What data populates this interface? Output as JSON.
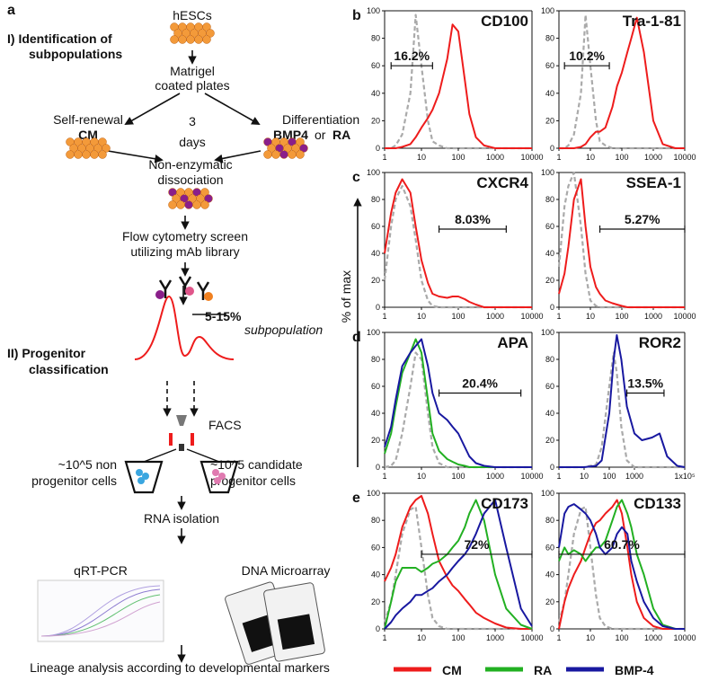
{
  "panel_labels": [
    "a",
    "b",
    "c",
    "d",
    "e"
  ],
  "y_label": "% of max",
  "legend": [
    {
      "name": "CM",
      "color": "#ee1c1c"
    },
    {
      "name": "RA",
      "color": "#22b022"
    },
    {
      "name": "BMP-4",
      "color": "#1818a0"
    }
  ],
  "diagram": {
    "texts": [
      "I) Identification of",
      "subpopulations",
      "hESCs",
      "Matrigel",
      "coated plates",
      "Self-renewal",
      "CM",
      "3",
      "days",
      "Differentiation",
      "BMP4",
      "or",
      "RA",
      "Non-enzymatic",
      "dissociation",
      "Flow cytometry screen",
      "utilizing mAb library",
      "5-15%",
      "subpopulation",
      "II) Progenitor",
      "classification",
      "FACS",
      "~10^5 non",
      "progenitor cells",
      "~10^5 candidate",
      "progenitor cells",
      "RNA isolation",
      "qRT-PCR",
      "DNA Microarray",
      "Lineage analysis according to developmental markers"
    ]
  },
  "chart_data": [
    {
      "type": "line",
      "title": "CD100",
      "log_x": true,
      "x": [
        1,
        1.5,
        2,
        3,
        5,
        7,
        10,
        15,
        20,
        30,
        50,
        70,
        100,
        150,
        200,
        300,
        500,
        1000,
        2000,
        5000,
        10000
      ],
      "xlim": [
        1,
        10000
      ],
      "xticks": [
        1,
        10,
        100,
        1000,
        10000
      ],
      "ylim": [
        0,
        100
      ],
      "yticks": [
        0,
        20,
        40,
        60,
        80,
        100
      ],
      "series": [
        {
          "color": "#aaaaaa",
          "dash": true,
          "values": [
            0,
            0,
            2,
            10,
            40,
            97,
            60,
            20,
            5,
            2,
            0,
            0,
            0,
            0,
            0,
            0,
            0,
            0,
            0,
            0,
            0
          ]
        },
        {
          "color": "#ee1c1c",
          "values": [
            0,
            0,
            0,
            1,
            3,
            8,
            15,
            22,
            28,
            40,
            65,
            90,
            85,
            50,
            25,
            8,
            2,
            0,
            0,
            0,
            0
          ]
        }
      ],
      "gate": {
        "label": "16.2%",
        "range": [
          1.5,
          20
        ],
        "y": 60
      }
    },
    {
      "type": "line",
      "title": "Tra-1-81",
      "log_x": true,
      "x": [
        1,
        1.5,
        2,
        3,
        5,
        7,
        10,
        15,
        20,
        30,
        50,
        70,
        100,
        150,
        200,
        300,
        500,
        1000,
        2000,
        5000,
        10000
      ],
      "xlim": [
        1,
        10000
      ],
      "xticks": [
        1,
        10,
        100,
        1000,
        10000
      ],
      "ylim": [
        0,
        100
      ],
      "yticks": [
        0,
        20,
        40,
        60,
        80,
        100
      ],
      "series": [
        {
          "color": "#aaaaaa",
          "dash": true,
          "values": [
            0,
            0,
            2,
            10,
            40,
            97,
            60,
            20,
            5,
            2,
            0,
            0,
            0,
            0,
            0,
            0,
            0,
            0,
            0,
            0,
            0
          ]
        },
        {
          "color": "#ee1c1c",
          "values": [
            0,
            0,
            0,
            0,
            1,
            3,
            8,
            12,
            12,
            15,
            30,
            45,
            55,
            70,
            80,
            95,
            70,
            20,
            3,
            0,
            0
          ]
        }
      ],
      "gate": {
        "label": "10.2%",
        "range": [
          1.5,
          40
        ],
        "y": 60
      }
    },
    {
      "type": "line",
      "title": "CXCR4",
      "log_x": true,
      "x": [
        1,
        1.5,
        2,
        3,
        5,
        7,
        10,
        15,
        20,
        30,
        50,
        70,
        100,
        150,
        200,
        300,
        500,
        1000,
        2000,
        5000,
        10000
      ],
      "xlim": [
        1,
        10000
      ],
      "xticks": [
        1,
        10,
        100,
        1000,
        10000
      ],
      "ylim": [
        0,
        100
      ],
      "yticks": [
        0,
        20,
        40,
        60,
        80,
        100
      ],
      "series": [
        {
          "color": "#aaaaaa",
          "dash": true,
          "values": [
            20,
            60,
            80,
            90,
            75,
            50,
            20,
            5,
            1,
            0,
            0,
            0,
            0,
            0,
            0,
            0,
            0,
            0,
            0,
            0,
            0
          ]
        },
        {
          "color": "#ee1c1c",
          "values": [
            40,
            70,
            85,
            95,
            85,
            60,
            35,
            18,
            10,
            8,
            7,
            8,
            8,
            6,
            4,
            2,
            0,
            0,
            0,
            0,
            0
          ]
        }
      ],
      "gate": {
        "label": "8.03%",
        "range": [
          30,
          2000
        ],
        "y": 58
      }
    },
    {
      "type": "line",
      "title": "SSEA-1",
      "log_x": true,
      "x": [
        1,
        1.5,
        2,
        3,
        5,
        7,
        10,
        15,
        20,
        30,
        50,
        70,
        100,
        150,
        200,
        300,
        500,
        1000,
        2000,
        5000,
        10000
      ],
      "xlim": [
        1,
        10000
      ],
      "xticks": [
        1,
        10,
        100,
        1000,
        10000
      ],
      "ylim": [
        0,
        100
      ],
      "yticks": [
        0,
        20,
        40,
        60,
        80,
        100
      ],
      "series": [
        {
          "color": "#aaaaaa",
          "dash": true,
          "values": [
            30,
            75,
            90,
            100,
            60,
            25,
            5,
            1,
            0,
            0,
            0,
            0,
            0,
            0,
            0,
            0,
            0,
            0,
            0,
            0,
            0
          ]
        },
        {
          "color": "#ee1c1c",
          "values": [
            10,
            25,
            45,
            80,
            95,
            60,
            30,
            15,
            10,
            5,
            3,
            2,
            1,
            0,
            0,
            0,
            0,
            0,
            0,
            0,
            0
          ]
        }
      ],
      "gate": {
        "label": "5.27%",
        "range": [
          20,
          10000
        ],
        "y": 58
      }
    },
    {
      "type": "line",
      "title": "APA",
      "log_x": true,
      "x": [
        1,
        1.5,
        2,
        3,
        5,
        7,
        10,
        15,
        20,
        30,
        50,
        70,
        100,
        150,
        200,
        300,
        500,
        1000,
        2000,
        5000,
        10000
      ],
      "xlim": [
        1,
        10000
      ],
      "xticks": [
        1,
        10,
        100,
        1000,
        10000
      ],
      "ylim": [
        0,
        100
      ],
      "yticks": [
        0,
        20,
        40,
        60,
        80,
        100
      ],
      "series": [
        {
          "color": "#aaaaaa",
          "dash": true,
          "values": [
            0,
            1,
            5,
            25,
            60,
            85,
            80,
            40,
            15,
            3,
            0,
            0,
            0,
            0,
            0,
            0,
            0,
            0,
            0,
            0,
            0
          ]
        },
        {
          "color": "#22b022",
          "values": [
            10,
            25,
            45,
            70,
            85,
            95,
            85,
            50,
            25,
            12,
            6,
            4,
            2,
            1,
            0,
            0,
            0,
            0,
            0,
            0,
            0
          ]
        },
        {
          "color": "#1818a0",
          "values": [
            15,
            30,
            50,
            75,
            85,
            90,
            95,
            75,
            55,
            40,
            35,
            30,
            25,
            15,
            8,
            3,
            1,
            0,
            0,
            0,
            0
          ]
        }
      ],
      "gate": {
        "label": "20.4%",
        "range": [
          30,
          5000
        ],
        "y": 55
      }
    },
    {
      "type": "line",
      "title": "ROR2",
      "log_x": true,
      "x": [
        1,
        3,
        10,
        30,
        50,
        100,
        150,
        200,
        300,
        500,
        1000,
        2000,
        5000,
        10000,
        20000,
        50000,
        100000
      ],
      "xlim": [
        1,
        100000
      ],
      "xticks": [
        1,
        10,
        100,
        1000,
        {
          "value": 100000,
          "label": "1x10⁵"
        }
      ],
      "ylim": [
        0,
        100
      ],
      "yticks": [
        0,
        20,
        40,
        60,
        80,
        100
      ],
      "series": [
        {
          "color": "#aaaaaa",
          "dash": true,
          "values": [
            0,
            0,
            0,
            2,
            15,
            60,
            85,
            70,
            30,
            5,
            0,
            0,
            0,
            0,
            0,
            0,
            0
          ]
        },
        {
          "color": "#1818a0",
          "values": [
            0,
            0,
            0,
            1,
            5,
            40,
            80,
            98,
            80,
            45,
            25,
            20,
            22,
            25,
            8,
            1,
            0
          ]
        }
      ],
      "gate": {
        "label": "13.5%",
        "range": [
          500,
          15000
        ],
        "y": 55
      }
    },
    {
      "type": "line",
      "title": "CD173",
      "log_x": true,
      "x": [
        1,
        1.5,
        2,
        3,
        5,
        7,
        10,
        15,
        20,
        30,
        50,
        70,
        100,
        150,
        200,
        300,
        500,
        1000,
        2000,
        5000,
        10000
      ],
      "xlim": [
        1,
        10000
      ],
      "xticks": [
        1,
        10,
        100,
        1000,
        10000
      ],
      "ylim": [
        0,
        100
      ],
      "yticks": [
        0,
        20,
        40,
        60,
        80,
        100
      ],
      "series": [
        {
          "color": "#aaaaaa",
          "dash": true,
          "values": [
            5,
            20,
            40,
            70,
            88,
            90,
            60,
            25,
            8,
            2,
            0,
            0,
            0,
            0,
            0,
            0,
            0,
            0,
            0,
            0,
            0
          ]
        },
        {
          "color": "#ee1c1c",
          "values": [
            35,
            45,
            55,
            75,
            90,
            95,
            98,
            85,
            70,
            50,
            38,
            32,
            28,
            22,
            18,
            12,
            8,
            4,
            1,
            0,
            0
          ]
        },
        {
          "color": "#22b022",
          "values": [
            0,
            20,
            35,
            45,
            45,
            45,
            42,
            45,
            48,
            50,
            55,
            60,
            65,
            75,
            85,
            95,
            80,
            40,
            15,
            3,
            0
          ]
        },
        {
          "color": "#1818a0",
          "values": [
            0,
            5,
            10,
            15,
            20,
            25,
            25,
            28,
            30,
            35,
            40,
            45,
            50,
            55,
            60,
            70,
            85,
            95,
            60,
            15,
            2
          ]
        }
      ],
      "gate": {
        "label": "72%",
        "range": [
          10,
          10000
        ],
        "y": 55
      }
    },
    {
      "type": "line",
      "title": "CD133",
      "log_x": true,
      "x": [
        1,
        1.5,
        2,
        3,
        5,
        7,
        10,
        15,
        20,
        30,
        50,
        70,
        100,
        150,
        200,
        300,
        500,
        1000,
        2000,
        5000,
        10000
      ],
      "xlim": [
        1,
        10000
      ],
      "xticks": [
        1,
        10,
        100,
        1000,
        10000
      ],
      "ylim": [
        0,
        100
      ],
      "yticks": [
        0,
        20,
        40,
        60,
        80,
        100
      ],
      "series": [
        {
          "color": "#aaaaaa",
          "dash": true,
          "values": [
            5,
            20,
            40,
            70,
            88,
            90,
            60,
            25,
            8,
            2,
            0,
            0,
            0,
            0,
            0,
            0,
            0,
            0,
            0,
            0,
            0
          ]
        },
        {
          "color": "#ee1c1c",
          "values": [
            0,
            20,
            30,
            40,
            50,
            60,
            70,
            78,
            80,
            85,
            90,
            95,
            85,
            60,
            40,
            20,
            8,
            2,
            0,
            0,
            0
          ]
        },
        {
          "color": "#22b022",
          "values": [
            50,
            60,
            55,
            58,
            55,
            50,
            55,
            60,
            60,
            65,
            80,
            90,
            95,
            85,
            75,
            55,
            40,
            15,
            3,
            0,
            0
          ]
        },
        {
          "color": "#1818a0",
          "values": [
            60,
            85,
            90,
            92,
            88,
            85,
            80,
            70,
            60,
            55,
            60,
            70,
            75,
            70,
            50,
            35,
            20,
            8,
            2,
            0,
            0
          ]
        }
      ],
      "gate": {
        "label": "60.7%",
        "range": [
          1,
          10000
        ],
        "y": 55
      }
    }
  ]
}
